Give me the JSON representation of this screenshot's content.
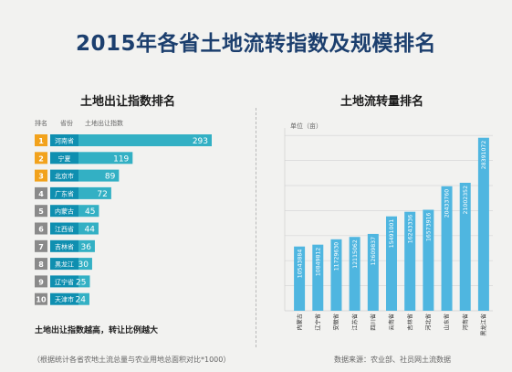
{
  "title": "2015年各省土地流转指数及规模排名",
  "left_panel": {
    "title": "土地出让指数排名",
    "headers": {
      "rank": "排名",
      "province": "省份",
      "index": "土地出让指数"
    },
    "footnote": "土地出让指数越高，转让比例越大"
  },
  "right_panel": {
    "title": "土地流转量排名",
    "unit_label": "单位（亩）"
  },
  "bottom_note": "（根据统计各省农地土流总量与农业用地总面积对比*1000）",
  "source": "数据来源：农业部、社员网土流数据",
  "colors": {
    "bar": "#33b0c4",
    "rank_top": "#f2a21c",
    "rank_other": "#8a8a8a",
    "province_box": "#0f8fb0",
    "rlight": "#4fb6e0",
    "title": "#1c3f6e"
  },
  "chart_data": [
    {
      "type": "bar",
      "orientation": "horizontal",
      "ranks": [
        "1",
        "2",
        "3",
        "4",
        "5",
        "6",
        "7",
        "8",
        "9",
        "10"
      ],
      "categories": [
        "河南省",
        "宁夏",
        "北京市",
        "广东省",
        "内蒙古",
        "江西省",
        "吉林省",
        "黑龙江",
        "辽宁省",
        "天津市"
      ],
      "values": [
        293,
        119,
        89,
        72,
        45,
        44,
        36,
        30,
        25,
        24
      ],
      "title": "土地出让指数排名",
      "xlabel": "土地出让指数"
    },
    {
      "type": "bar",
      "orientation": "vertical",
      "categories": [
        "内蒙古",
        "辽宁省",
        "安徽省",
        "江苏省",
        "四川省",
        "云南省",
        "吉林省",
        "河北省",
        "山东省",
        "河南省",
        "黑龙江省"
      ],
      "values": [
        10543884,
        10849812,
        11729630,
        12115062,
        12609837,
        15491001,
        16243336,
        16573916,
        20433760,
        21002352,
        28391072
      ],
      "labels": [
        "10543884",
        "10849812",
        "11729630",
        "12115062",
        "12609837",
        "15491001",
        "16243336",
        "16573916",
        "20433760",
        "21002352",
        "28391072"
      ],
      "title": "土地流转量排名",
      "ylabel": "单位（亩）",
      "grid": true
    }
  ]
}
